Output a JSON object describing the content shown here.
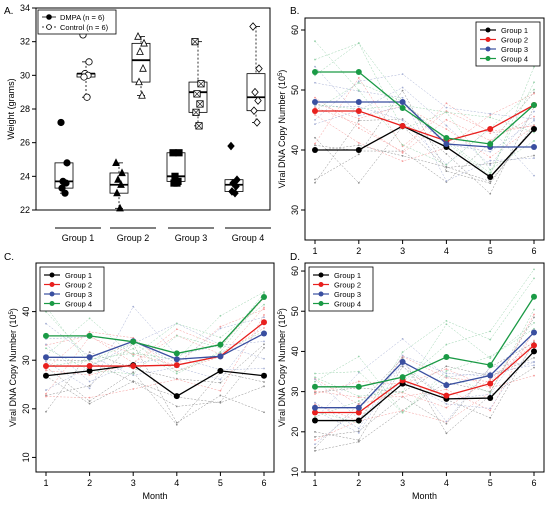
{
  "chart_data": [
    {
      "panel_label": "A.",
      "type": "box",
      "ylabel": "Weight (grams)",
      "ylim": [
        22,
        34
      ],
      "yticks": [
        22,
        24,
        26,
        28,
        30,
        32,
        34
      ],
      "groups": [
        "Group 1",
        "Group 2",
        "Group 3",
        "Group 4"
      ],
      "legend": [
        {
          "label": "DMPA (n = 6)",
          "marker": "filled-circle"
        },
        {
          "label": "Control (n = 6)",
          "marker": "open-circle"
        }
      ],
      "series": [
        {
          "name": "DMPA (n = 6)",
          "boxes": [
            {
              "group": "Group 1",
              "min": 23.0,
              "q1": 23.3,
              "median": 23.7,
              "q3": 24.8,
              "max": 24.8,
              "points": [
                27.2,
                24.8,
                23.7,
                23.6,
                23.3,
                23.0
              ],
              "marker": "filled-circle"
            },
            {
              "group": "Group 2",
              "min": 22.1,
              "q1": 23.0,
              "median": 23.5,
              "q3": 24.2,
              "max": 24.8,
              "points": [
                24.8,
                24.2,
                23.8,
                23.5,
                23.0,
                22.1
              ],
              "marker": "filled-triangle"
            },
            {
              "group": "Group 3",
              "min": 23.6,
              "q1": 23.7,
              "median": 24.0,
              "q3": 25.4,
              "max": 25.4,
              "points": [
                25.4,
                25.4,
                24.0,
                23.7,
                23.6,
                23.6
              ],
              "marker": "filled-square"
            },
            {
              "group": "Group 4",
              "min": 23.0,
              "q1": 23.1,
              "median": 23.5,
              "q3": 23.8,
              "max": 23.8,
              "points": [
                25.8,
                23.8,
                23.6,
                23.4,
                23.1,
                23.0
              ],
              "marker": "filled-diamond"
            }
          ]
        },
        {
          "name": "Control (n = 6)",
          "boxes": [
            {
              "group": "Group 1",
              "min": 28.7,
              "q1": 29.9,
              "median": 30.1,
              "q3": 30.1,
              "max": 30.8,
              "points": [
                32.4,
                30.8,
                30.1,
                30.0,
                29.9,
                28.7
              ],
              "marker": "open-circle"
            },
            {
              "group": "Group 2",
              "min": 28.8,
              "q1": 29.6,
              "median": 30.9,
              "q3": 31.9,
              "max": 32.3,
              "points": [
                32.3,
                31.9,
                31.4,
                30.4,
                29.6,
                28.8
              ],
              "marker": "open-triangle"
            },
            {
              "group": "Group 3",
              "min": 27.0,
              "q1": 27.8,
              "median": 29.0,
              "q3": 29.6,
              "max": 32.0,
              "points": [
                32.0,
                29.5,
                28.9,
                28.3,
                27.8,
                27.0
              ],
              "marker": "open-square-x"
            },
            {
              "group": "Group 4",
              "min": 27.2,
              "q1": 27.9,
              "median": 28.7,
              "q3": 30.1,
              "max": 32.9,
              "points": [
                32.9,
                30.4,
                29.0,
                28.5,
                27.9,
                27.2
              ],
              "marker": "open-diamond"
            }
          ]
        }
      ]
    },
    {
      "panel_label": "B.",
      "type": "line",
      "xlabel": "",
      "ylabel": "Viral DNA Copy Number (10^5)",
      "ylim": [
        25,
        62
      ],
      "yticks": [
        30,
        40,
        50,
        60
      ],
      "x": [
        1,
        2,
        3,
        4,
        5,
        6
      ],
      "legend_position": "top-right",
      "series": [
        {
          "name": "Group 1",
          "color": "#000000",
          "values": [
            40.0,
            40.0,
            44.0,
            40.5,
            35.5,
            43.5
          ]
        },
        {
          "name": "Group 2",
          "color": "#e8201e",
          "values": [
            46.5,
            46.5,
            44.0,
            41.5,
            43.5,
            47.5
          ]
        },
        {
          "name": "Group 3",
          "color": "#3a4fa0",
          "values": [
            48.0,
            48.0,
            48.0,
            41.0,
            40.5,
            40.5
          ]
        },
        {
          "name": "Group 4",
          "color": "#1a9a45",
          "values": [
            53.0,
            53.0,
            47.0,
            42.0,
            41.0,
            47.5
          ]
        }
      ]
    },
    {
      "panel_label": "C.",
      "type": "line",
      "xlabel": "Month",
      "ylabel": "Viral DNA Copy Number (10^5)",
      "ylim": [
        7,
        50
      ],
      "yticks": [
        10,
        20,
        30,
        40
      ],
      "x": [
        1,
        2,
        3,
        4,
        5,
        6
      ],
      "legend_position": "top-left",
      "series": [
        {
          "name": "Group 1",
          "color": "#000000",
          "values": [
            26.8,
            27.8,
            29.0,
            22.6,
            27.8,
            26.8
          ]
        },
        {
          "name": "Group 2",
          "color": "#e8201e",
          "values": [
            28.8,
            28.8,
            28.8,
            29.0,
            30.8,
            37.8
          ]
        },
        {
          "name": "Group 3",
          "color": "#3a4fa0",
          "values": [
            30.6,
            30.6,
            33.9,
            30.2,
            30.8,
            35.5
          ]
        },
        {
          "name": "Group 4",
          "color": "#1a9a45",
          "values": [
            35.0,
            35.0,
            33.8,
            31.4,
            33.2,
            43.0
          ]
        }
      ]
    },
    {
      "panel_label": "D.",
      "type": "line",
      "xlabel": "Month",
      "ylabel": "Viral DNA Copy Number (10^5)",
      "ylim": [
        10,
        62
      ],
      "yticks": [
        10,
        20,
        30,
        40,
        50,
        60
      ],
      "x": [
        1,
        2,
        3,
        4,
        5,
        6
      ],
      "legend_position": "top-left",
      "series": [
        {
          "name": "Group 1",
          "color": "#000000",
          "values": [
            22.8,
            22.8,
            32.0,
            28.2,
            28.4,
            40.0
          ]
        },
        {
          "name": "Group 2",
          "color": "#e8201e",
          "values": [
            24.8,
            24.8,
            32.8,
            29.0,
            32.0,
            41.5
          ]
        },
        {
          "name": "Group 3",
          "color": "#3a4fa0",
          "values": [
            26.0,
            26.0,
            37.4,
            31.6,
            34.0,
            44.7
          ]
        },
        {
          "name": "Group 4",
          "color": "#1a9a45",
          "values": [
            31.2,
            31.2,
            33.6,
            38.6,
            36.6,
            53.6
          ]
        }
      ]
    }
  ]
}
